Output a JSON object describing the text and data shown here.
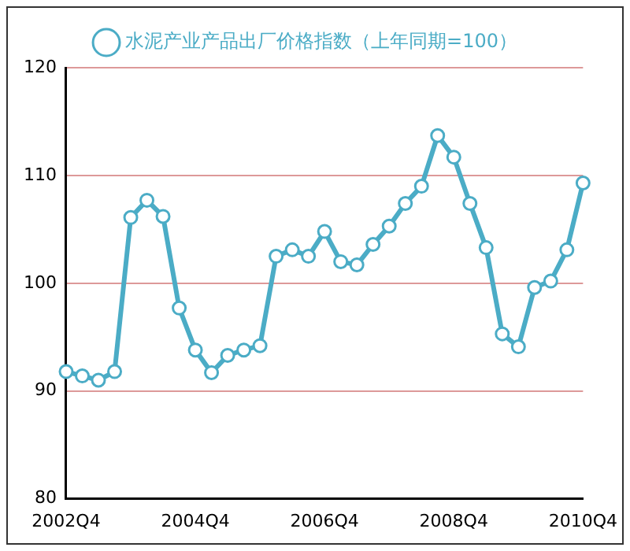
{
  "chart_data": {
    "type": "line",
    "categories": [
      "2002Q4",
      null,
      null,
      null,
      null,
      null,
      null,
      null,
      "2004Q4",
      null,
      null,
      null,
      null,
      null,
      null,
      null,
      "2006Q4",
      null,
      null,
      null,
      null,
      null,
      null,
      null,
      "2008Q4",
      null,
      null,
      null,
      null,
      null,
      null,
      null,
      "2010Q4"
    ],
    "series": [
      {
        "name": "水泥产业产品出厂价格指数（上年同期=100）",
        "color": "#4bacc6",
        "values": [
          91.8,
          91.4,
          91.0,
          91.8,
          106.1,
          107.7,
          106.2,
          97.7,
          93.8,
          91.7,
          93.3,
          93.8,
          94.2,
          102.5,
          103.1,
          102.5,
          104.8,
          102.0,
          101.7,
          103.6,
          105.3,
          107.4,
          109.0,
          113.7,
          111.7,
          107.4,
          103.3,
          95.3,
          94.1,
          99.6,
          100.2,
          103.1,
          109.3
        ]
      }
    ],
    "ylim": [
      80,
      120
    ],
    "yticks": [
      80,
      90,
      100,
      110,
      120
    ],
    "grid": "y",
    "legend": "top",
    "marker": "circle",
    "line_style": "solid"
  }
}
